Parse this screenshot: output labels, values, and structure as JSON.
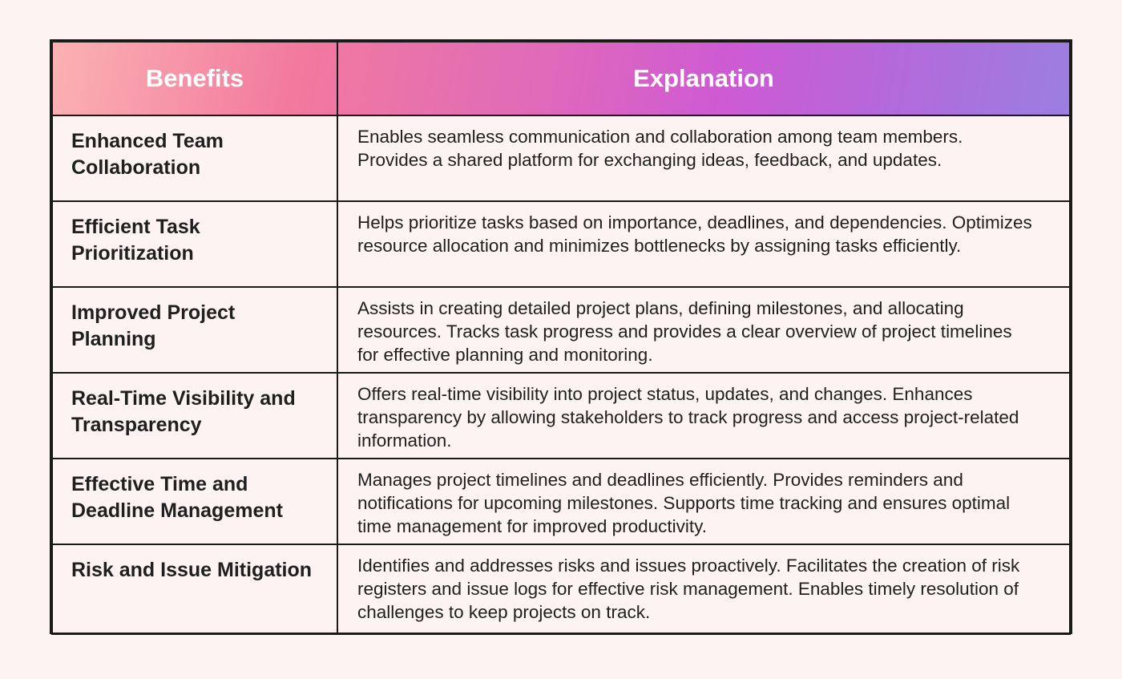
{
  "table": {
    "headers": {
      "benefits": "Benefits",
      "explanation": "Explanation"
    },
    "rows": [
      {
        "benefit": "Enhanced Team Collaboration",
        "explanation": "Enables seamless communication and collaboration among team members. Provides a shared platform for exchanging ideas, feedback, and updates."
      },
      {
        "benefit": "Efficient Task Prioritization",
        "explanation": "Helps prioritize tasks based on importance, deadlines, and dependencies. Optimizes resource allocation and minimizes bottlenecks by assigning tasks efficiently."
      },
      {
        "benefit": "Improved Project Planning",
        "explanation": "Assists in creating detailed project plans, defining milestones, and allocating resources. Tracks task progress and provides a clear overview of project timelines for effective planning and monitoring."
      },
      {
        "benefit": "Real-Time Visibility and Transparency",
        "explanation": "Offers real-time visibility into project status, updates, and changes. Enhances transparency by allowing stakeholders to track progress and access project-related information."
      },
      {
        "benefit": "Effective Time and Deadline Management",
        "explanation": "Manages project timelines and deadlines efficiently. Provides reminders and notifications for upcoming milestones. Supports time tracking and ensures optimal time management for improved productivity."
      },
      {
        "benefit": "Risk and Issue Mitigation",
        "explanation": "Identifies and addresses risks and issues proactively. Facilitates the creation of risk registers and issue logs for effective risk management. Enables timely resolution of challenges to keep projects on track."
      }
    ]
  },
  "colors": {
    "background": "#fdf3f2",
    "border": "#1a1a1a",
    "header_text": "#ffffff",
    "header_gradient": [
      "#fbb2b3",
      "#f27a9e",
      "#e06ab9",
      "#ce5ad4",
      "#b16bdb",
      "#9b7fe0"
    ]
  }
}
